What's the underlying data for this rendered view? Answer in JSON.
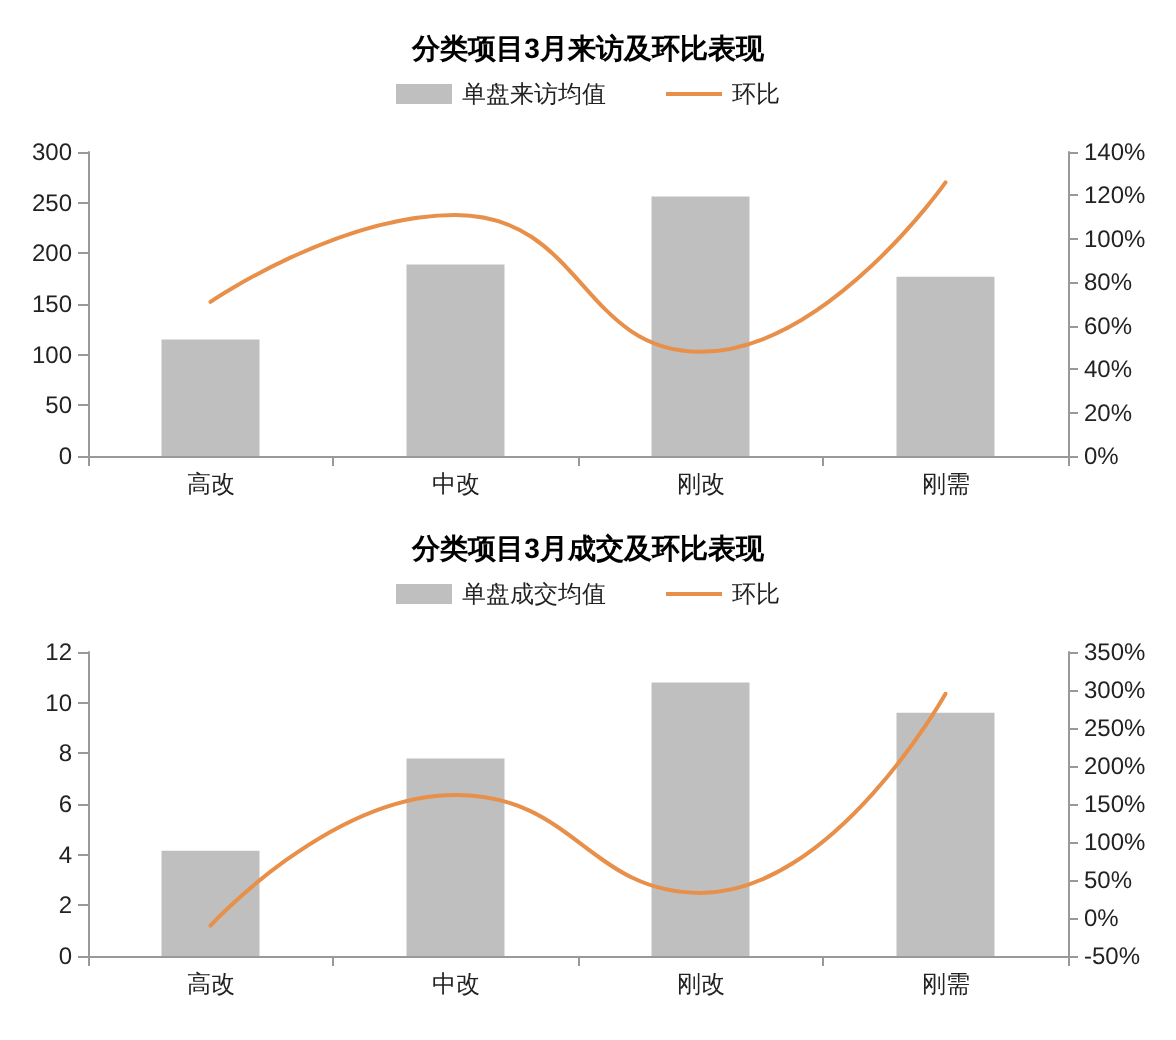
{
  "chart_data": [
    {
      "type": "bar",
      "title": "分类项目3月来访及环比表现",
      "categories": [
        "高改",
        "中改",
        "刚改",
        "刚需"
      ],
      "series": [
        {
          "name": "单盘来访均值",
          "color": "#bfbfbf",
          "values": [
            115,
            189,
            256,
            177
          ]
        },
        {
          "name": "环比",
          "type": "line",
          "axis": "y2",
          "color": "#e8904a",
          "values": [
            71,
            111,
            48,
            126
          ]
        }
      ],
      "ylim": [
        0,
        300
      ],
      "yticks": [
        0,
        50,
        100,
        150,
        200,
        250,
        300
      ],
      "y2lim": [
        0,
        140
      ],
      "y2ticks": [
        {
          "value": 0,
          "label": "0%"
        },
        {
          "value": 20,
          "label": "20%"
        },
        {
          "value": 40,
          "label": "40%"
        },
        {
          "value": 60,
          "label": "60%"
        },
        {
          "value": 80,
          "label": "80%"
        },
        {
          "value": 100,
          "label": "100%"
        },
        {
          "value": 120,
          "label": "120%"
        },
        {
          "value": 140,
          "label": "140%"
        }
      ],
      "legend": "top",
      "grid": false,
      "marker": "none",
      "line_style": "solid"
    },
    {
      "type": "bar",
      "title": "分类项目3月成交及环比表现",
      "categories": [
        "高改",
        "中改",
        "刚改",
        "刚需"
      ],
      "series": [
        {
          "name": "单盘成交均值",
          "color": "#bfbfbf",
          "values": [
            4.15,
            7.8,
            10.8,
            9.6
          ]
        },
        {
          "name": "环比",
          "type": "line",
          "axis": "y2",
          "color": "#e8904a",
          "values": [
            -10,
            162,
            33,
            295
          ]
        }
      ],
      "ylim": [
        0,
        12
      ],
      "yticks": [
        0,
        2,
        4,
        6,
        8,
        10,
        12
      ],
      "y2lim": [
        -50,
        350
      ],
      "y2ticks": [
        {
          "value": -50,
          "label": "-50%"
        },
        {
          "value": 0,
          "label": "0%"
        },
        {
          "value": 50,
          "label": "50%"
        },
        {
          "value": 100,
          "label": "100%"
        },
        {
          "value": 150,
          "label": "150%"
        },
        {
          "value": 200,
          "label": "200%"
        },
        {
          "value": 250,
          "label": "250%"
        },
        {
          "value": 300,
          "label": "300%"
        },
        {
          "value": 350,
          "label": "350%"
        }
      ],
      "legend": "top",
      "grid": false,
      "marker": "none",
      "line_style": "solid"
    }
  ]
}
